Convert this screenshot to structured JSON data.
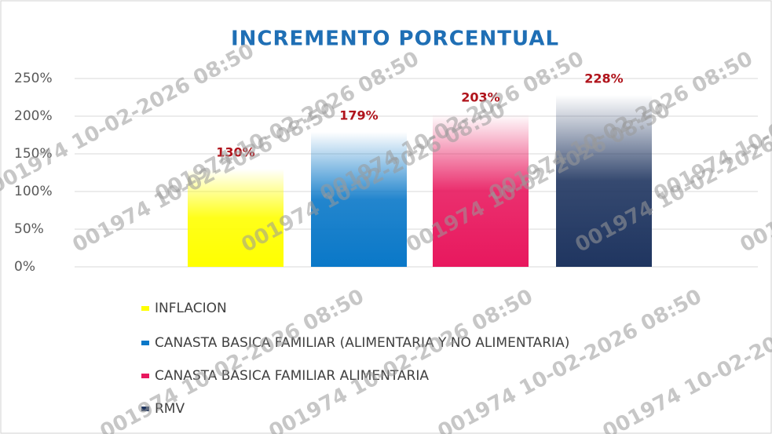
{
  "chart_data": {
    "type": "bar",
    "title": "INCREMENTO PORCENTUAL",
    "categories": [
      "INFLACION",
      "CANASTA BASICA FAMILIAR (ALIMENTARIA Y NO ALIMENTARIA)",
      "CANASTA BASICA FAMILIAR ALIMENTARIA",
      "RMV"
    ],
    "values": [
      130,
      179,
      203,
      228
    ],
    "value_labels": [
      "130%",
      "179%",
      "203%",
      "228%"
    ],
    "colors": [
      "#ffff00",
      "#0a78c8",
      "#e8185e",
      "#1f3560"
    ],
    "ylim": [
      0,
      250
    ],
    "yticks": [
      {
        "value": 0,
        "label": "0%"
      },
      {
        "value": 50,
        "label": "50%"
      },
      {
        "value": 100,
        "label": "100%"
      },
      {
        "value": 150,
        "label": "150%"
      },
      {
        "value": 200,
        "label": "200%"
      },
      {
        "value": 250,
        "label": "250%"
      }
    ],
    "grid": true,
    "watermark": "001974 10-02-2026 08:50"
  }
}
